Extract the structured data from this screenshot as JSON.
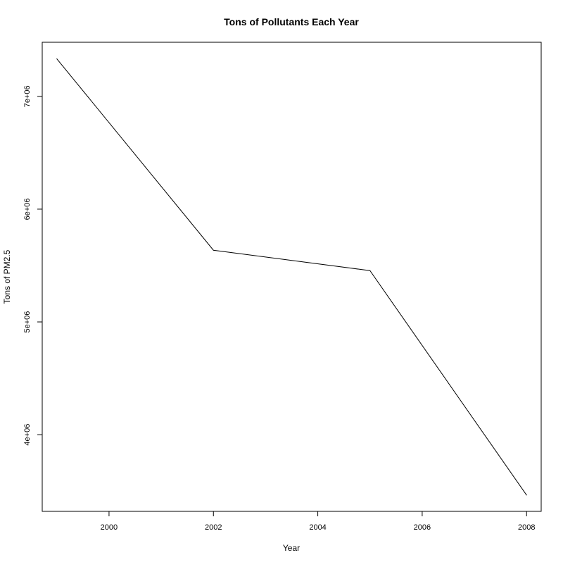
{
  "chart_data": {
    "type": "line",
    "title": "Tons of Pollutants Each Year",
    "xlabel": "Year",
    "ylabel": "Tons of PM2.5",
    "x": [
      1999,
      2002,
      2005,
      2008
    ],
    "series": [
      {
        "values": [
          7332967,
          5635780,
          5454703,
          3464206
        ],
        "color": "#000000"
      }
    ],
    "xlim": [
      1998.72,
      2008.28
    ],
    "ylim": [
      3320000,
      7480000
    ],
    "x_ticks": [
      {
        "value": 2000,
        "label": "2000"
      },
      {
        "value": 2002,
        "label": "2002"
      },
      {
        "value": 2004,
        "label": "2004"
      },
      {
        "value": 2006,
        "label": "2006"
      },
      {
        "value": 2008,
        "label": "2008"
      }
    ],
    "y_ticks": [
      {
        "value": 4000000,
        "label": "4e+06"
      },
      {
        "value": 5000000,
        "label": "5e+06"
      },
      {
        "value": 6000000,
        "label": "6e+06"
      },
      {
        "value": 7000000,
        "label": "7e+06"
      }
    ],
    "grid": false,
    "legend": "none"
  }
}
